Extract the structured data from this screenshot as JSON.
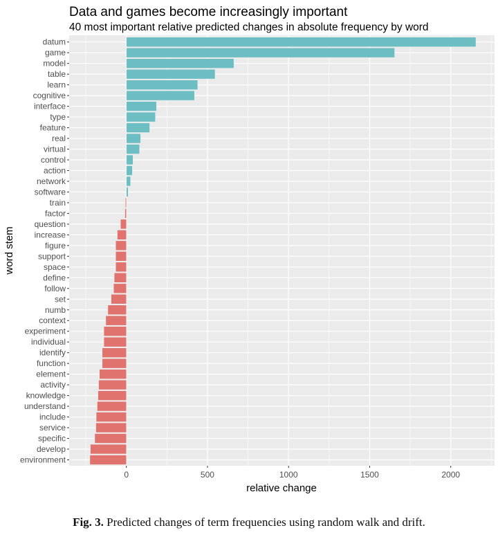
{
  "chart_data": {
    "type": "bar",
    "orientation": "horizontal",
    "title": "Data and games become increasingly important",
    "subtitle": "40 most important relative predicted changes in absolute frequency by word",
    "xlabel": "relative change",
    "ylabel": "word stem",
    "xlim": [
      -350,
      2280
    ],
    "x_ticks": [
      0,
      500,
      1000,
      1500,
      2000
    ],
    "x_tick_labels": [
      "0",
      "500",
      "1000",
      "1500",
      "2000"
    ],
    "x_minor_ticks": [
      -250,
      250,
      750,
      1250,
      1750,
      2250
    ],
    "grid": true,
    "legend": "none",
    "colors": {
      "positive": "#6cbec2",
      "negative": "#e0736e",
      "panel": "#ebebeb",
      "grid": "#ffffff"
    },
    "categories": [
      "datum",
      "game",
      "model",
      "table",
      "learn",
      "cognitive",
      "interface",
      "type",
      "feature",
      "real",
      "virtual",
      "control",
      "action",
      "network",
      "software",
      "train",
      "factor",
      "question",
      "increase",
      "figure",
      "support",
      "space",
      "define",
      "follow",
      "set",
      "numb",
      "context",
      "experiment",
      "individual",
      "identify",
      "function",
      "element",
      "activity",
      "knowledge",
      "understand",
      "include",
      "service",
      "specific",
      "develop",
      "environment"
    ],
    "values": [
      2155,
      1654,
      663,
      547,
      440,
      420,
      186,
      179,
      144,
      88,
      81,
      41,
      37,
      26,
      11,
      -6,
      -9,
      -36,
      -56,
      -66,
      -66,
      -66,
      -75,
      -79,
      -94,
      -114,
      -127,
      -139,
      -139,
      -149,
      -149,
      -166,
      -171,
      -175,
      -180,
      -186,
      -188,
      -195,
      -222,
      -225
    ]
  },
  "caption": {
    "label": "Fig. 3.",
    "text": "Predicted changes of term frequencies using random walk and drift."
  }
}
